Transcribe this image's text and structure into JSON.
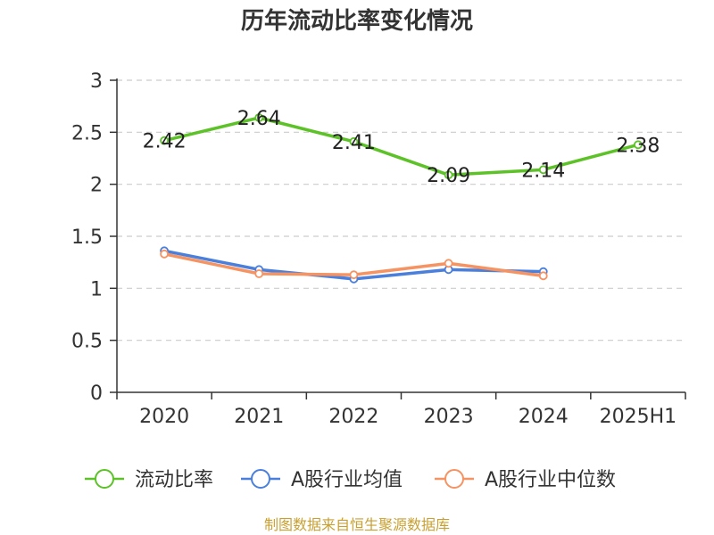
{
  "chart_data": {
    "type": "line",
    "title": "历年流动比率变化情况",
    "categories": [
      "2020",
      "2021",
      "2022",
      "2023",
      "2024",
      "2025H1"
    ],
    "ylim": [
      0,
      3
    ],
    "yticks": [
      "0",
      "0.5",
      "1",
      "1.5",
      "2",
      "2.5",
      "3"
    ],
    "grid": true,
    "legend_position": "bottom",
    "series": [
      {
        "name": "流动比率",
        "color": "#5cc228",
        "values": [
          2.42,
          2.64,
          2.41,
          2.09,
          2.14,
          2.38
        ],
        "labels": [
          "2.42",
          "2.64",
          "2.41",
          "2.09",
          "2.14",
          "2.38"
        ]
      },
      {
        "name": "A股行业均值",
        "color": "#4a7fdc",
        "values": [
          1.36,
          1.18,
          1.09,
          1.18,
          1.16,
          null
        ]
      },
      {
        "name": "A股行业中位数",
        "color": "#f59363",
        "values": [
          1.33,
          1.14,
          1.13,
          1.24,
          1.12,
          null
        ]
      }
    ],
    "source": "制图数据来自恒生聚源数据库"
  }
}
